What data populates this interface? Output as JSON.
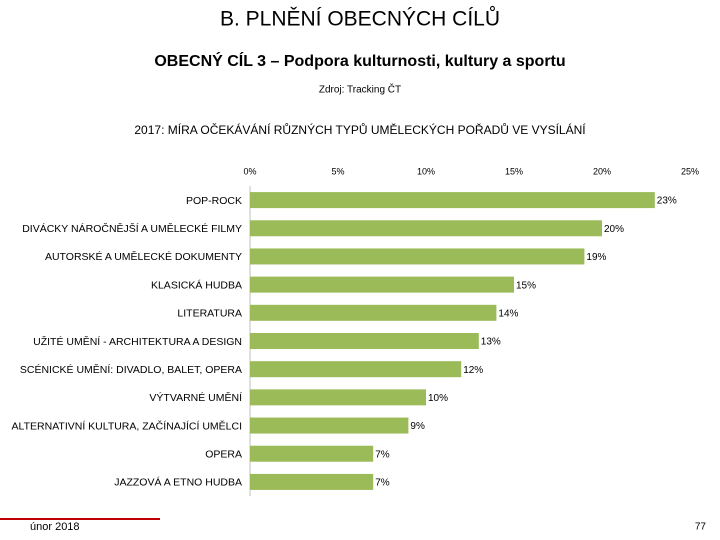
{
  "header": {
    "title": "B. PLNĚNÍ OBECNÝCH CÍLŮ",
    "subtitle": "OBECNÝ CÍL 3 – Podpora kulturnosti, kultury a sportu",
    "source": "Zdroj: Tracking ČT"
  },
  "chart_data": {
    "type": "bar",
    "orientation": "horizontal",
    "title": "2017: MÍRA OČEKÁVÁNÍ RŮZNÝCH TYPŮ UMĚLECKÝCH POŘADŮ VE VYSÍLÁNÍ",
    "categories": [
      "POP-ROCK",
      "DIVÁCKY NÁROČNĚJŠÍ A UMĚLECKÉ FILMY",
      "AUTORSKÉ A UMĚLECKÉ DOKUMENTY",
      "KLASICKÁ HUDBA",
      "LITERATURA",
      "UŽITÉ UMĚNÍ - ARCHITEKTURA A DESIGN",
      "SCÉNICKÉ UMĚNÍ: DIVADLO, BALET, OPERA",
      "VÝTVARNÉ UMĚNÍ",
      "ALTERNATIVNÍ KULTURA, ZAČÍNAJÍCÍ UMĚLCI",
      "OPERA",
      "JAZZOVÁ A ETNO HUDBA"
    ],
    "values": [
      23,
      20,
      19,
      15,
      14,
      13,
      12,
      10,
      9,
      7,
      7
    ],
    "value_labels": [
      "23%",
      "20%",
      "19%",
      "15%",
      "14%",
      "13%",
      "12%",
      "10%",
      "9%",
      "7%",
      "7%"
    ],
    "color": "#9bbb59",
    "xlim": [
      0,
      25
    ],
    "xticks": [
      {
        "value": 0,
        "label": "0%"
      },
      {
        "value": 5,
        "label": "5%"
      },
      {
        "value": 10,
        "label": "10%"
      },
      {
        "value": 15,
        "label": "15%"
      },
      {
        "value": 20,
        "label": "20%"
      },
      {
        "value": 25,
        "label": "25%"
      }
    ],
    "grid": false
  },
  "footer": {
    "date": "únor 2018",
    "page": 77
  }
}
